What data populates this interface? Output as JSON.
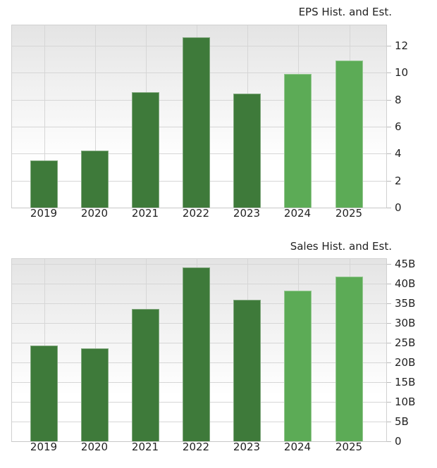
{
  "colors": {
    "historical": "#3e7a3a",
    "estimate": "#5cab56",
    "grid": "#d6d6d6"
  },
  "chart_data": [
    {
      "type": "bar",
      "title": "EPS Hist. and Est.",
      "categories": [
        "2019",
        "2020",
        "2021",
        "2022",
        "2023",
        "2024",
        "2025"
      ],
      "series": [
        {
          "name": "Historical",
          "values": [
            3.5,
            4.2,
            8.55,
            12.6,
            8.45,
            null,
            null
          ]
        },
        {
          "name": "Estimate",
          "values": [
            null,
            null,
            null,
            null,
            null,
            9.9,
            10.9
          ]
        }
      ],
      "values": [
        3.5,
        4.2,
        8.55,
        12.6,
        8.45,
        9.9,
        10.9
      ],
      "xlabel": "",
      "ylabel": "",
      "ylim": [
        0,
        13.5
      ],
      "yticks": [
        "0",
        "2",
        "4",
        "6",
        "8",
        "10",
        "12"
      ],
      "ytick_values": [
        0,
        2,
        4,
        6,
        8,
        10,
        12
      ],
      "grid": true,
      "y_axis_position": "right",
      "legend": "none"
    },
    {
      "type": "bar",
      "title": "Sales Hist. and Est.",
      "categories": [
        "2019",
        "2020",
        "2021",
        "2022",
        "2023",
        "2024",
        "2025"
      ],
      "series": [
        {
          "name": "Historical",
          "values": [
            24.3,
            23.6,
            33.5,
            44.1,
            35.8,
            null,
            null
          ]
        },
        {
          "name": "Estimate",
          "values": [
            null,
            null,
            null,
            null,
            null,
            38.1,
            41.8
          ]
        }
      ],
      "values": [
        24.3,
        23.6,
        33.5,
        44.1,
        35.8,
        38.1,
        41.8
      ],
      "units": "B",
      "xlabel": "",
      "ylabel": "",
      "ylim": [
        0,
        46.2
      ],
      "yticks": [
        "0",
        "5B",
        "10B",
        "15B",
        "20B",
        "25B",
        "30B",
        "35B",
        "40B",
        "45B"
      ],
      "ytick_values": [
        0,
        5,
        10,
        15,
        20,
        25,
        30,
        35,
        40,
        45
      ],
      "grid": true,
      "y_axis_position": "right",
      "legend": "none"
    }
  ]
}
